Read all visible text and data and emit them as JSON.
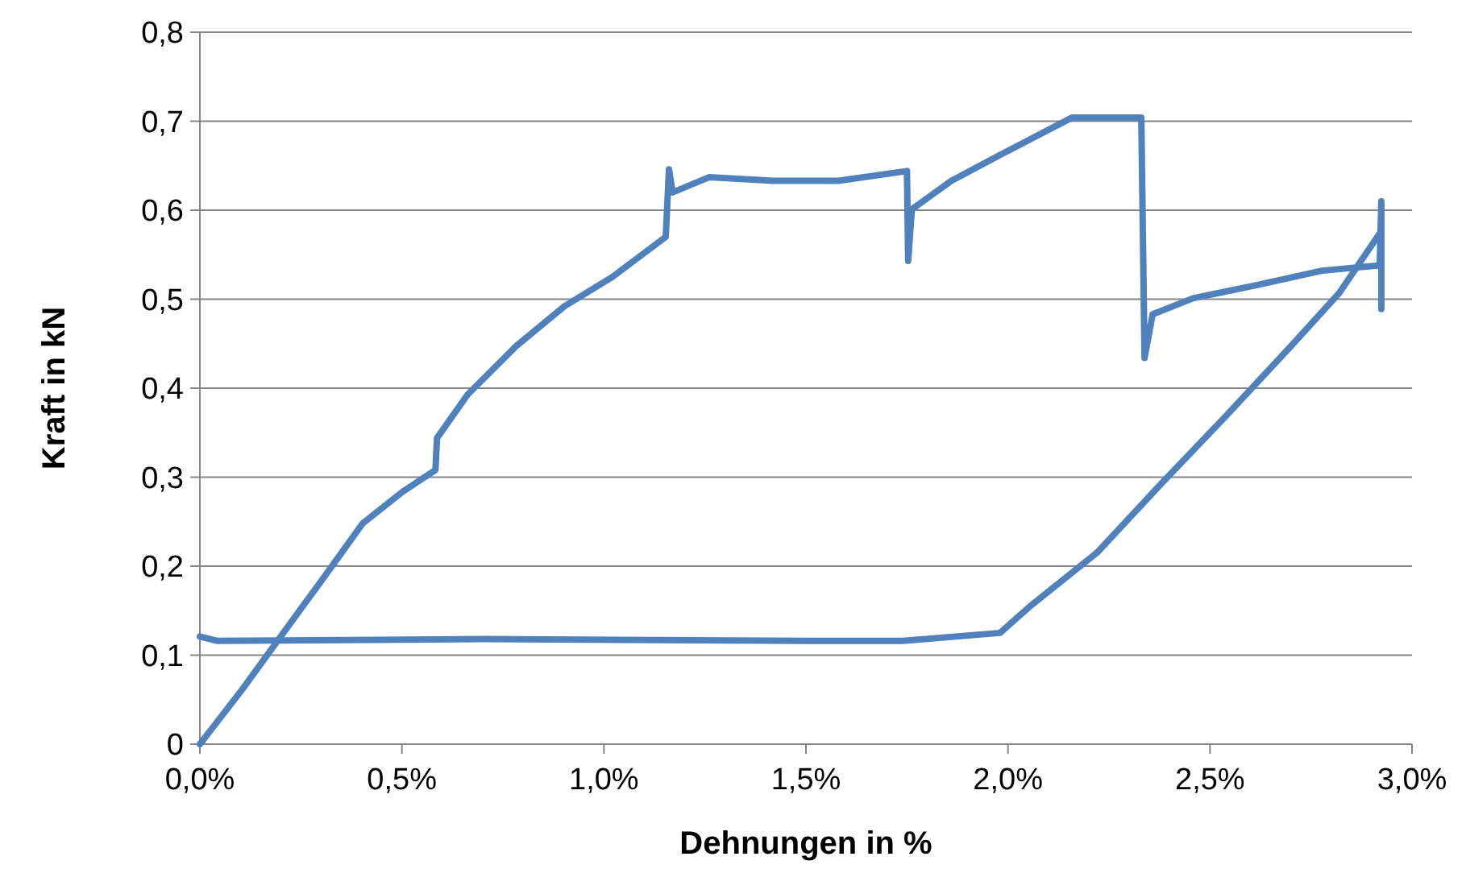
{
  "chart_data": {
    "type": "line",
    "xlabel": "Dehnungen in %",
    "ylabel": "Kraft in kN",
    "xlim": [
      0,
      3
    ],
    "xticks": [
      {
        "value": 0,
        "label": "0,0%"
      },
      {
        "value": 0.5,
        "label": "0,5%"
      },
      {
        "value": 1,
        "label": "1,0%"
      },
      {
        "value": 1.5,
        "label": "1,5%"
      },
      {
        "value": 2,
        "label": "2,0%"
      },
      {
        "value": 2.5,
        "label": "2,5%"
      },
      {
        "value": 3,
        "label": "3,0%"
      }
    ],
    "ylim": [
      0,
      0.8
    ],
    "yticks": [
      {
        "value": 0,
        "label": "0"
      },
      {
        "value": 0.1,
        "label": "0,1"
      },
      {
        "value": 0.2,
        "label": "0,2"
      },
      {
        "value": 0.3,
        "label": "0,3"
      },
      {
        "value": 0.4,
        "label": "0,4"
      },
      {
        "value": 0.5,
        "label": "0,5"
      },
      {
        "value": 0.6,
        "label": "0,6"
      },
      {
        "value": 0.7,
        "label": "0,7"
      },
      {
        "value": 0.8,
        "label": "0,8"
      }
    ],
    "grid": "y",
    "marker": "none",
    "line_style": "solid",
    "series": [
      {
        "color": "#4f81bd",
        "x": [
          0,
          0.104,
          0.2,
          0.303,
          0.403,
          0.503,
          0.583,
          0.587,
          0.663,
          0.782,
          0.902,
          1.021,
          1.153,
          1.161,
          1.17,
          1.26,
          1.42,
          1.58,
          1.75,
          1.753,
          1.762,
          1.86,
          1.98,
          2.158,
          2.33,
          2.338,
          2.358,
          2.458,
          2.617,
          2.777,
          2.92,
          2.924,
          2.924
        ],
        "values": [
          0,
          0.061,
          0.121,
          0.185,
          0.248,
          0.284,
          0.308,
          0.344,
          0.393,
          0.447,
          0.492,
          0.525,
          0.57,
          0.646,
          0.62,
          0.637,
          0.633,
          0.633,
          0.644,
          0.543,
          0.601,
          0.633,
          0.662,
          0.704,
          0.704,
          0.434,
          0.483,
          0.501,
          0.516,
          0.532,
          0.538,
          0.61,
          0.489
        ]
      },
      {
        "color": "#4f81bd",
        "x": [
          0,
          0.044,
          0.702,
          1.5,
          1.74,
          1.98,
          2.06,
          2.22,
          2.38,
          2.54,
          2.7,
          2.82,
          2.92
        ],
        "values": [
          0.121,
          0.116,
          0.118,
          0.116,
          0.116,
          0.125,
          0.157,
          0.215,
          0.293,
          0.369,
          0.447,
          0.507,
          0.574
        ]
      }
    ]
  }
}
